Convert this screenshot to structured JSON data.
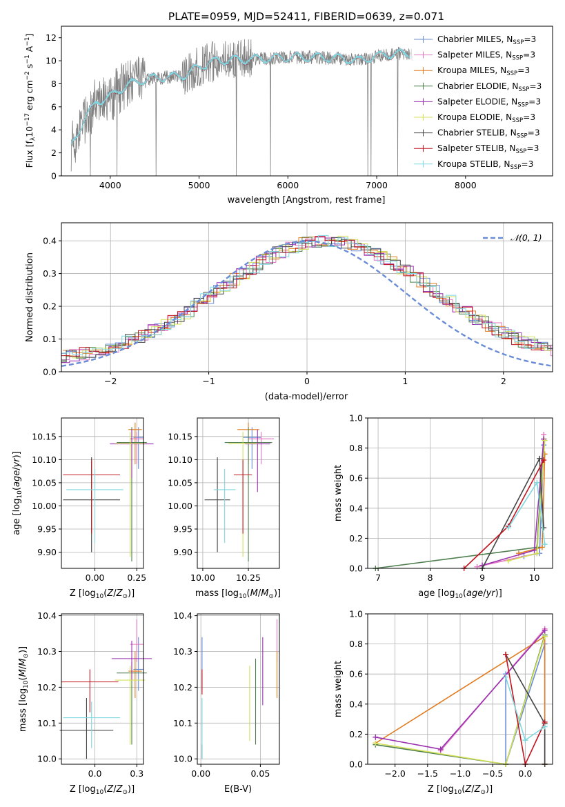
{
  "title": "PLATE=0959, MJD=52411, FIBERID=0639, z=0.071",
  "legend_models": [
    {
      "name": "Chabrier MILES, N_SSP=3",
      "prefix": "Chabrier MILES, N",
      "sub": "SSP",
      "suffix": "=3",
      "color": "#6a8cd6"
    },
    {
      "name": "Salpeter MILES, N_SSP=3",
      "prefix": "Salpeter MILES, N",
      "sub": "SSP",
      "suffix": "=3",
      "color": "#e377c2"
    },
    {
      "name": "Kroupa MILES, N_SSP=3",
      "prefix": "Kroupa MILES, N",
      "sub": "SSP",
      "suffix": "=3",
      "color": "#e07b20"
    },
    {
      "name": "Chabrier ELODIE, N_SSP=3",
      "prefix": "Chabrier ELODIE, N",
      "sub": "SSP",
      "suffix": "=3",
      "color": "#4f7f4f"
    },
    {
      "name": "Salpeter ELODIE, N_SSP=3",
      "prefix": "Salpeter ELODIE, N",
      "sub": "SSP",
      "suffix": "=3",
      "color": "#9b30b0"
    },
    {
      "name": "Kroupa ELODIE, N_SSP=3",
      "prefix": "Kroupa ELODIE, N",
      "sub": "SSP",
      "suffix": "=3",
      "color": "#d4e157"
    },
    {
      "name": "Chabrier STELIB, N_SSP=3",
      "prefix": "Chabrier STELIB, N",
      "sub": "SSP",
      "suffix": "=3",
      "color": "#444444"
    },
    {
      "name": "Salpeter STELIB, N_SSP=3",
      "prefix": "Salpeter STELIB, N",
      "sub": "SSP",
      "suffix": "=3",
      "color": "#c0141e"
    },
    {
      "name": "Kroupa STELIB, N_SSP=3",
      "prefix": "Kroupa STELIB, N",
      "sub": "SSP",
      "suffix": "=3",
      "color": "#7fd8e0"
    }
  ],
  "chart_data": [
    {
      "id": "spectrum",
      "type": "line",
      "title": "PLATE=0959, MJD=52411, FIBERID=0639, z=0.071",
      "xlabel": "wavelength [Angstrom, rest frame]",
      "ylabel": "Flux [f_λ 10^-17 erg cm^-2 s^-1 A^-1]",
      "ylabel_parts": {
        "a": "Flux [f",
        "b": "λ",
        "c": "10",
        "d": "−17",
        "e": " erg cm",
        "f": "−2",
        "g": " s",
        "h": "−1",
        "i": " A",
        "j": "−1",
        "k": "]"
      },
      "xlim": [
        3450,
        8980
      ],
      "ylim": [
        0,
        13
      ],
      "xticks": [
        4000,
        5000,
        6000,
        7000,
        8000
      ],
      "yticks": [
        0,
        2,
        4,
        6,
        8,
        10,
        12
      ],
      "grid": false,
      "legend": "top-right",
      "data_color": "#808080",
      "model_color": "#7fd8e0",
      "data_anchors": {
        "x": [
          3560,
          3700,
          3850,
          4000,
          4100,
          4300,
          4500,
          4700,
          4860,
          5000,
          5200,
          5500,
          5800,
          6000,
          6300,
          6600,
          6800,
          7000,
          7200,
          7400
        ],
        "y": [
          2.5,
          4.8,
          6.5,
          6.8,
          7.5,
          8.2,
          8.5,
          8.6,
          8.8,
          9.5,
          10.0,
          10.1,
          10.2,
          10.3,
          10.3,
          10.2,
          10.0,
          10.4,
          10.6,
          10.6
        ]
      }
    },
    {
      "id": "residuals",
      "type": "line",
      "xlabel": "(data-model)/error",
      "ylabel": "Normed distribution",
      "xlim": [
        -2.5,
        2.5
      ],
      "ylim": [
        0,
        0.455
      ],
      "xticks": [
        -2,
        -1,
        0,
        1,
        2
      ],
      "yticks": [
        0.0,
        0.1,
        0.2,
        0.3,
        0.4
      ],
      "grid": true,
      "legend": "top-right",
      "series": [
        {
          "name": "𝒩(0, 1)",
          "kind": "normal",
          "mean": 0,
          "sigma": 1,
          "color": "#6a8cd6"
        }
      ]
    },
    {
      "id": "age-vs-Z",
      "type": "scatter",
      "xlabel": "Z [log10(Z/Z⊙)]",
      "ylabel": "age [log10(age/yr)]",
      "xlim": [
        -0.2,
        0.29
      ],
      "ylim": [
        9.865,
        10.19
      ],
      "xticks": [
        0.0,
        0.25
      ],
      "yticks": [
        9.9,
        9.95,
        10.0,
        10.05,
        10.1,
        10.15
      ],
      "grid": true,
      "points": [
        {
          "x": 0.26,
          "y": 10.148,
          "xerr": 0.03,
          "ylo": 10.08,
          "yhi": 10.17,
          "color": "#6a8cd6"
        },
        {
          "x": 0.25,
          "y": 10.145,
          "xerr": 0.04,
          "ylo": 10.09,
          "yhi": 10.16,
          "color": "#e377c2"
        },
        {
          "x": 0.24,
          "y": 10.165,
          "xerr": 0.04,
          "ylo": 10.09,
          "yhi": 10.18,
          "color": "#e07b20"
        },
        {
          "x": 0.22,
          "y": 10.137,
          "xerr": 0.09,
          "ylo": 9.88,
          "yhi": 10.17,
          "color": "#4f7f4f"
        },
        {
          "x": 0.22,
          "y": 10.134,
          "xerr": 0.13,
          "ylo": 10.06,
          "yhi": 10.165,
          "color": "#9b30b0"
        },
        {
          "x": 0.21,
          "y": 10.135,
          "xerr": 0.09,
          "ylo": 9.89,
          "yhi": 10.16,
          "color": "#d4e157"
        },
        {
          "x": -0.02,
          "y": 10.013,
          "xerr": 0.17,
          "ylo": 9.9,
          "yhi": 10.105,
          "color": "#444444"
        },
        {
          "x": -0.02,
          "y": 10.067,
          "xerr": 0.17,
          "ylo": 9.94,
          "yhi": 10.1,
          "color": "#c0141e"
        },
        {
          "x": 0.0,
          "y": 10.035,
          "xerr": 0.17,
          "ylo": 9.92,
          "yhi": 10.08,
          "color": "#7fd8e0"
        }
      ]
    },
    {
      "id": "age-vs-mass",
      "type": "scatter",
      "xlabel": "mass [log10(M/M⊙)]",
      "ylabel": "",
      "xlim": [
        9.97,
        10.42
      ],
      "ylim": [
        9.865,
        10.19
      ],
      "xticks": [
        10.0,
        10.25
      ],
      "yticks": [
        9.9,
        9.95,
        10.0,
        10.05,
        10.1,
        10.15
      ],
      "grid": true,
      "points": [
        {
          "x": 10.27,
          "y": 10.148,
          "xerr": 0.05,
          "ylo": 10.08,
          "yhi": 10.17,
          "color": "#6a8cd6"
        },
        {
          "x": 10.32,
          "y": 10.145,
          "xerr": 0.07,
          "ylo": 10.09,
          "yhi": 10.16,
          "color": "#e377c2"
        },
        {
          "x": 10.25,
          "y": 10.165,
          "xerr": 0.06,
          "ylo": 10.09,
          "yhi": 10.18,
          "color": "#e07b20"
        },
        {
          "x": 10.25,
          "y": 10.137,
          "xerr": 0.13,
          "ylo": 9.88,
          "yhi": 10.17,
          "color": "#4f7f4f"
        },
        {
          "x": 10.3,
          "y": 10.134,
          "xerr": 0.07,
          "ylo": 10.03,
          "yhi": 10.165,
          "color": "#9b30b0"
        },
        {
          "x": 10.22,
          "y": 10.135,
          "xerr": 0.08,
          "ylo": 9.89,
          "yhi": 10.16,
          "color": "#d4e157"
        },
        {
          "x": 10.08,
          "y": 10.013,
          "xerr": 0.07,
          "ylo": 9.9,
          "yhi": 10.105,
          "color": "#444444"
        },
        {
          "x": 10.22,
          "y": 10.067,
          "xerr": 0.05,
          "ylo": 9.94,
          "yhi": 10.1,
          "color": "#c0141e"
        },
        {
          "x": 10.12,
          "y": 10.035,
          "xerr": 0.06,
          "ylo": 9.92,
          "yhi": 10.08,
          "color": "#7fd8e0"
        }
      ]
    },
    {
      "id": "weight-vs-age",
      "type": "line",
      "xlabel": "age [log10(age/yr)]",
      "ylabel": "mass weight",
      "xlim": [
        6.8,
        10.35
      ],
      "ylim": [
        0,
        1.0
      ],
      "xticks": [
        7,
        8,
        9,
        10
      ],
      "yticks": [
        0.0,
        0.2,
        0.4,
        0.6,
        0.8,
        1.0
      ],
      "grid": true,
      "series": [
        {
          "color": "#6a8cd6",
          "x": [
            9.8,
            10.1,
            10.18
          ],
          "y": [
            0.08,
            0.1,
            0.82
          ]
        },
        {
          "color": "#e377c2",
          "x": [
            8.9,
            10.05,
            10.18
          ],
          "y": [
            0.01,
            0.1,
            0.89
          ]
        },
        {
          "color": "#e07b20",
          "x": [
            9.7,
            10.15,
            10.2
          ],
          "y": [
            0.1,
            0.14,
            0.76
          ]
        },
        {
          "color": "#4f7f4f",
          "x": [
            6.95,
            10.05,
            10.18
          ],
          "y": [
            0.0,
            0.14,
            0.86
          ]
        },
        {
          "color": "#9b30b0",
          "x": [
            9.0,
            10.0,
            10.18
          ],
          "y": [
            0.02,
            0.12,
            0.86
          ]
        },
        {
          "color": "#d4e157",
          "x": [
            9.5,
            10.05,
            10.2
          ],
          "y": [
            0.05,
            0.1,
            0.85
          ]
        },
        {
          "color": "#444444",
          "x": [
            9.0,
            10.1,
            10.18
          ],
          "y": [
            0.0,
            0.73,
            0.27
          ]
        },
        {
          "color": "#c0141e",
          "x": [
            8.65,
            9.5,
            10.18
          ],
          "y": [
            0.0,
            0.28,
            0.72
          ]
        },
        {
          "color": "#7fd8e0",
          "x": [
            9.5,
            10.05,
            10.2
          ],
          "y": [
            0.27,
            0.57,
            0.16
          ]
        }
      ]
    },
    {
      "id": "mass-vs-Z",
      "type": "scatter",
      "xlabel": "Z [log10(Z/Z⊙)]",
      "ylabel": "mass [log10(M/M⊙)]",
      "xlim": [
        -0.2,
        0.29
      ],
      "ylim": [
        9.985,
        10.405
      ],
      "xticks": [
        0.0,
        0.25
      ],
      "yticks": [
        10.0,
        10.1,
        10.2,
        10.3,
        10.4
      ],
      "grid": true,
      "points": [
        {
          "x": 0.26,
          "y": 10.25,
          "xerr": 0.03,
          "ylo": 10.19,
          "yhi": 10.34,
          "color": "#6a8cd6"
        },
        {
          "x": 0.25,
          "y": 10.32,
          "xerr": 0.04,
          "ylo": 10.27,
          "yhi": 10.39,
          "color": "#e377c2"
        },
        {
          "x": 0.24,
          "y": 10.245,
          "xerr": 0.04,
          "ylo": 10.17,
          "yhi": 10.3,
          "color": "#e07b20"
        },
        {
          "x": 0.22,
          "y": 10.24,
          "xerr": 0.09,
          "ylo": 10.04,
          "yhi": 10.27,
          "color": "#4f7f4f"
        },
        {
          "x": 0.22,
          "y": 10.28,
          "xerr": 0.12,
          "ylo": 10.22,
          "yhi": 10.33,
          "color": "#9b30b0"
        },
        {
          "x": 0.21,
          "y": 10.22,
          "xerr": 0.09,
          "ylo": 10.04,
          "yhi": 10.26,
          "color": "#d4e157"
        },
        {
          "x": -0.05,
          "y": 10.08,
          "xerr": 0.16,
          "ylo": 10.0,
          "yhi": 10.17,
          "color": "#444444"
        },
        {
          "x": -0.03,
          "y": 10.215,
          "xerr": 0.17,
          "ylo": 10.13,
          "yhi": 10.25,
          "color": "#c0141e"
        },
        {
          "x": -0.02,
          "y": 10.115,
          "xerr": 0.17,
          "ylo": 10.03,
          "yhi": 10.16,
          "color": "#7fd8e0"
        }
      ]
    },
    {
      "id": "mass-vs-EBV",
      "type": "scatter",
      "xlabel": "E(B-V)",
      "ylabel": "",
      "xlim": [
        -0.003,
        0.066
      ],
      "ylim": [
        9.985,
        10.405
      ],
      "xticks": [
        0.0,
        0.05
      ],
      "yticks": [
        10.0,
        10.1,
        10.2,
        10.3,
        10.4
      ],
      "grid": true,
      "points": [
        {
          "x": 0.001,
          "ylo": 10.19,
          "yhi": 10.34,
          "color": "#6a8cd6"
        },
        {
          "x": 0.064,
          "ylo": 10.27,
          "yhi": 10.39,
          "color": "#e377c2"
        },
        {
          "x": 0.064,
          "ylo": 10.17,
          "yhi": 10.3,
          "color": "#e07b20"
        },
        {
          "x": 0.046,
          "ylo": 10.04,
          "yhi": 10.28,
          "color": "#4f7f4f"
        },
        {
          "x": 0.052,
          "ylo": 10.15,
          "yhi": 10.34,
          "color": "#9b30b0"
        },
        {
          "x": 0.041,
          "ylo": 10.05,
          "yhi": 10.26,
          "color": "#d4e157"
        },
        {
          "x": 0.001,
          "ylo": 10.0,
          "yhi": 10.04,
          "color": "#444444"
        },
        {
          "x": 0.001,
          "ylo": 10.18,
          "yhi": 10.25,
          "color": "#c0141e"
        },
        {
          "x": 0.001,
          "ylo": 10.0,
          "yhi": 10.17,
          "color": "#7fd8e0"
        }
      ]
    },
    {
      "id": "weight-vs-Z",
      "type": "line",
      "xlabel": "Z [log10(Z/Z⊙)]",
      "ylabel": "mass weight",
      "xlim": [
        -2.42,
        0.42
      ],
      "ylim": [
        0,
        1.0
      ],
      "xticks": [
        -2.0,
        -1.5,
        -1.0,
        -0.5,
        0.0
      ],
      "yticks": [
        0.0,
        0.2,
        0.4,
        0.6,
        0.8,
        1.0
      ],
      "grid": true,
      "series": [
        {
          "color": "#6a8cd6",
          "x": [
            -0.3,
            -0.3,
            0.3
          ],
          "y": [
            0.6,
            0.0,
            0.8
          ]
        },
        {
          "color": "#e377c2",
          "x": [
            -1.3,
            0.3,
            0.3
          ],
          "y": [
            0.09,
            0.9,
            0.0
          ]
        },
        {
          "color": "#e07b20",
          "x": [
            -2.3,
            0.3,
            0.3
          ],
          "y": [
            0.14,
            0.85,
            0.0
          ]
        },
        {
          "color": "#4f7f4f",
          "x": [
            -2.3,
            -0.3,
            0.3
          ],
          "y": [
            0.13,
            0.0,
            0.86
          ]
        },
        {
          "color": "#9b30b0",
          "x": [
            -2.3,
            -1.3,
            0.3
          ],
          "y": [
            0.18,
            0.1,
            0.89
          ]
        },
        {
          "color": "#d4e157",
          "x": [
            -2.3,
            -0.3,
            0.3
          ],
          "y": [
            0.14,
            0.0,
            0.85
          ]
        },
        {
          "color": "#444444",
          "x": [
            -0.3,
            0.3,
            0.3
          ],
          "y": [
            0.73,
            0.27,
            0.0
          ]
        },
        {
          "color": "#c0141e",
          "x": [
            -0.3,
            0.0,
            0.3
          ],
          "y": [
            0.73,
            0.0,
            0.28
          ]
        },
        {
          "color": "#7fd8e0",
          "x": [
            -0.3,
            0.0,
            0.3
          ],
          "y": [
            0.58,
            0.16,
            0.25
          ]
        }
      ]
    }
  ]
}
